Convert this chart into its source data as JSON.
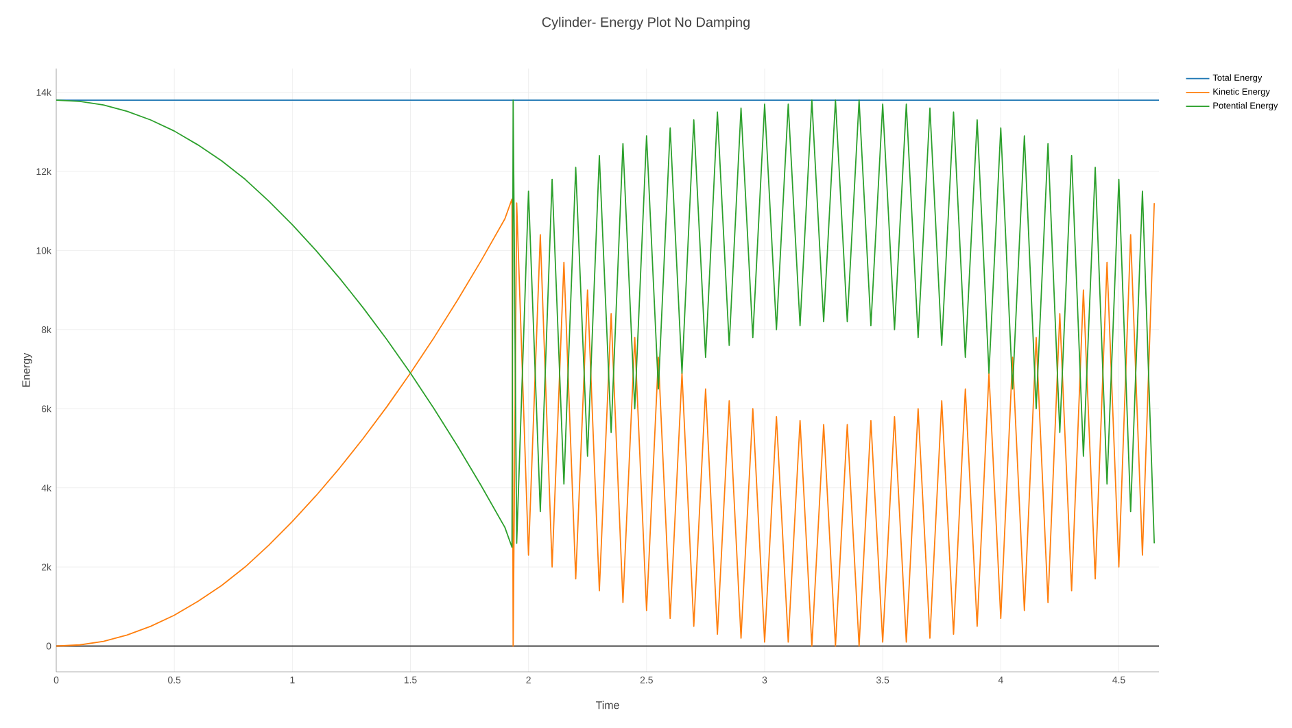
{
  "chart_data": {
    "type": "line",
    "title": "Cylinder- Energy Plot No Damping",
    "xlabel": "Time",
    "ylabel": "Energy",
    "xlim": [
      0,
      4.67
    ],
    "ylim": [
      -650,
      14600
    ],
    "xticks": [
      0,
      0.5,
      1,
      1.5,
      2,
      2.5,
      3,
      3.5,
      4,
      4.5
    ],
    "yticks": [
      0,
      {
        "value": 2000,
        "label": "2k"
      },
      {
        "value": 4000,
        "label": "4k"
      },
      {
        "value": 6000,
        "label": "6k"
      },
      {
        "value": 8000,
        "label": "8k"
      },
      {
        "value": 10000,
        "label": "10k"
      },
      {
        "value": 12000,
        "label": "12k"
      },
      {
        "value": 14000,
        "label": "14k"
      }
    ],
    "grid": true,
    "legend": "top right",
    "marker": "none",
    "line_style": "solid",
    "ref_lines": [
      {
        "axis": "y",
        "value": 0,
        "color": "#444444"
      }
    ],
    "series": [
      {
        "name": "Total Energy",
        "color": "#1f77b4",
        "x": [
          0,
          4.67
        ],
        "values": [
          13800,
          13800
        ]
      },
      {
        "name": "Kinetic Energy",
        "color": "#ff7f0e",
        "x": [
          0,
          0.1,
          0.2,
          0.3,
          0.4,
          0.5,
          0.6,
          0.7,
          0.8,
          0.9,
          1.0,
          1.1,
          1.2,
          1.3,
          1.4,
          1.5,
          1.6,
          1.7,
          1.8,
          1.9,
          1.93,
          1.935,
          1.95,
          2.0,
          2.05,
          2.1,
          2.15,
          2.2,
          2.25,
          2.3,
          2.35,
          2.4,
          2.45,
          2.5,
          2.55,
          2.6,
          2.65,
          2.7,
          2.75,
          2.8,
          2.85,
          2.9,
          2.95,
          3.0,
          3.05,
          3.1,
          3.15,
          3.2,
          3.25,
          3.3,
          3.35,
          3.4,
          3.45,
          3.5,
          3.55,
          3.6,
          3.65,
          3.7,
          3.75,
          3.8,
          3.85,
          3.9,
          3.95,
          4.0,
          4.05,
          4.1,
          4.15,
          4.2,
          4.25,
          4.3,
          4.35,
          4.4,
          4.45,
          4.5,
          4.55,
          4.6,
          4.65
        ],
        "values": [
          0,
          30,
          120,
          280,
          500,
          780,
          1130,
          1530,
          2000,
          2550,
          3150,
          3800,
          4500,
          5250,
          6050,
          6900,
          7800,
          8750,
          9750,
          10800,
          11300,
          0,
          11200,
          2300,
          10400,
          2000,
          9700,
          1700,
          9000,
          1400,
          8400,
          1100,
          7800,
          900,
          7300,
          700,
          6900,
          500,
          6500,
          300,
          6200,
          200,
          6000,
          100,
          5800,
          100,
          5700,
          0,
          5600,
          0,
          5600,
          0,
          5700,
          100,
          5800,
          100,
          6000,
          200,
          6200,
          300,
          6500,
          500,
          6900,
          700,
          7300,
          900,
          7800,
          1100,
          8400,
          1400,
          9000,
          1700,
          9700,
          2000,
          10400,
          2300,
          11200
        ]
      },
      {
        "name": "Potential Energy",
        "color": "#2ca02c",
        "x": [
          0,
          0.1,
          0.2,
          0.3,
          0.4,
          0.5,
          0.6,
          0.7,
          0.8,
          0.9,
          1.0,
          1.1,
          1.2,
          1.3,
          1.4,
          1.5,
          1.6,
          1.7,
          1.8,
          1.9,
          1.93,
          1.935,
          1.95,
          2.0,
          2.05,
          2.1,
          2.15,
          2.2,
          2.25,
          2.3,
          2.35,
          2.4,
          2.45,
          2.5,
          2.55,
          2.6,
          2.65,
          2.7,
          2.75,
          2.8,
          2.85,
          2.9,
          2.95,
          3.0,
          3.05,
          3.1,
          3.15,
          3.2,
          3.25,
          3.3,
          3.35,
          3.4,
          3.45,
          3.5,
          3.55,
          3.6,
          3.65,
          3.7,
          3.75,
          3.8,
          3.85,
          3.9,
          3.95,
          4.0,
          4.05,
          4.1,
          4.15,
          4.2,
          4.25,
          4.3,
          4.35,
          4.4,
          4.45,
          4.5,
          4.55,
          4.6,
          4.65
        ],
        "values": [
          13800,
          13770,
          13680,
          13520,
          13300,
          13020,
          12670,
          12270,
          11800,
          11250,
          10650,
          10000,
          9300,
          8550,
          7750,
          6900,
          6000,
          5050,
          4050,
          3000,
          2500,
          13800,
          2600,
          11500,
          3400,
          11800,
          4100,
          12100,
          4800,
          12400,
          5400,
          12700,
          6000,
          12900,
          6500,
          13100,
          6900,
          13300,
          7300,
          13500,
          7600,
          13600,
          7800,
          13700,
          8000,
          13700,
          8100,
          13800,
          8200,
          13800,
          8200,
          13800,
          8100,
          13700,
          8000,
          13700,
          7800,
          13600,
          7600,
          13500,
          7300,
          13300,
          6900,
          13100,
          6500,
          12900,
          6000,
          12700,
          5400,
          12400,
          4800,
          12100,
          4100,
          11800,
          3400,
          11500,
          2600
        ]
      }
    ]
  }
}
